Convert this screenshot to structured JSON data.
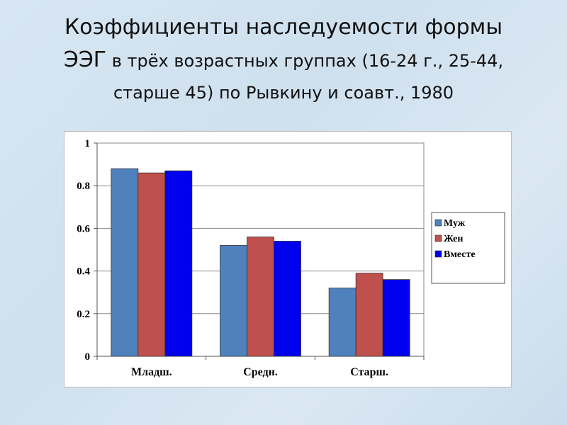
{
  "slide": {
    "title_line1": "Коэффициенты наследуемости формы",
    "title_line2_big": "ЭЭГ",
    "title_line2_small": " в трёх возрастных группах (16-24 г., 25-44,",
    "title_line3": "старше 45) по Рывкину и соавт., 1980"
  },
  "chart_data": {
    "type": "bar",
    "categories": [
      "Младш.",
      "Средн.",
      "Старш."
    ],
    "series": [
      {
        "name": "Муж",
        "values": [
          0.88,
          0.52,
          0.32
        ],
        "color": "#4f81bd"
      },
      {
        "name": "Жен",
        "values": [
          0.86,
          0.56,
          0.39
        ],
        "color": "#c0504d"
      },
      {
        "name": "Вместе",
        "values": [
          0.87,
          0.54,
          0.36
        ],
        "color": "#0000ee"
      }
    ],
    "ylim": [
      0,
      1
    ],
    "yticks": [
      "0",
      "0.2",
      "0.4",
      "0.6",
      "0.8",
      "1"
    ],
    "grid": true,
    "legend": "right"
  }
}
